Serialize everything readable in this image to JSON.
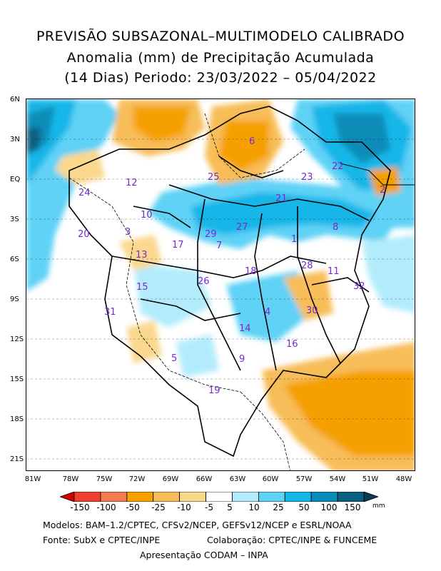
{
  "title": {
    "line1": "PREVISÃO SUBSAZONAL–MULTIMODELO CALIBRADO",
    "line2": "Anomalia (mm) de Precipitação Acumulada",
    "line3": "(14 Dias) Periodo: 23/03/2022 – 05/04/2022"
  },
  "axes": {
    "lat_ticks": [
      "6N",
      "3N",
      "EQ",
      "3S",
      "6S",
      "9S",
      "12S",
      "15S",
      "18S",
      "21S"
    ],
    "lon_ticks": [
      "81W",
      "78W",
      "75W",
      "72W",
      "69W",
      "66W",
      "63W",
      "60W",
      "57W",
      "54W",
      "51W",
      "48W"
    ]
  },
  "regions": [
    "1",
    "2",
    "3",
    "4",
    "5",
    "6",
    "7",
    "8",
    "9",
    "10",
    "11",
    "12",
    "13",
    "14",
    "15",
    "16",
    "17",
    "18",
    "19",
    "20",
    "21",
    "22",
    "23",
    "24",
    "25",
    "26",
    "27",
    "28",
    "29",
    "30",
    "31",
    "32"
  ],
  "legend": {
    "labels": [
      "-150",
      "-100",
      "-50",
      "-25",
      "-10",
      "-5",
      "5",
      "10",
      "25",
      "50",
      "100",
      "150"
    ],
    "unit": "mm",
    "colors": [
      "#d40000",
      "#f04030",
      "#f57a50",
      "#f5a000",
      "#f7bd58",
      "#fad88e",
      "#ffffff",
      "#b2ecfc",
      "#5fd2f6",
      "#14b6e8",
      "#0a8cb8",
      "#0a6080",
      "#0b3c50"
    ]
  },
  "footer": {
    "models": "Modelos: BAM–1.2/CPTEC, CFSv2/NCEP, GEFSv12/NCEP e ESRL/NOAA",
    "source": "Fonte: SubX e CPTEC/INPE",
    "collab": "Colaboração: CPTEC/INPE & FUNCEME",
    "presentation": "Apresentação CODAM – INPA"
  }
}
